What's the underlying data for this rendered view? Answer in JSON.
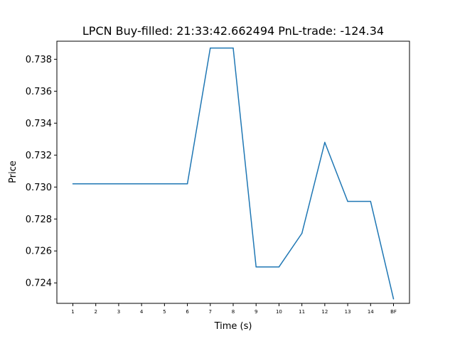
{
  "chart_data": {
    "type": "line",
    "title": "LPCN  Buy-filled:  21:33:42.662494  PnL-trade:  -124.34",
    "xlabel": "Time (s)",
    "ylabel": "Price",
    "categories": [
      "1",
      "2",
      "3",
      "4",
      "5",
      "6",
      "7",
      "8",
      "9",
      "10",
      "11",
      "12",
      "13",
      "14",
      "BF"
    ],
    "series": [
      {
        "values": [
          0.7302,
          0.7302,
          0.7302,
          0.7302,
          0.7302,
          0.7302,
          0.7387,
          0.7387,
          0.725,
          0.725,
          0.7271,
          0.7328,
          0.7291,
          0.7291,
          0.723
        ]
      }
    ],
    "ylim": [
      0.72272,
      0.73913
    ],
    "yticks": [
      "0.724",
      "0.726",
      "0.728",
      "0.730",
      "0.732",
      "0.734",
      "0.736",
      "0.738"
    ],
    "line_color": "#1f77b4",
    "grid": false,
    "legend": "none"
  }
}
